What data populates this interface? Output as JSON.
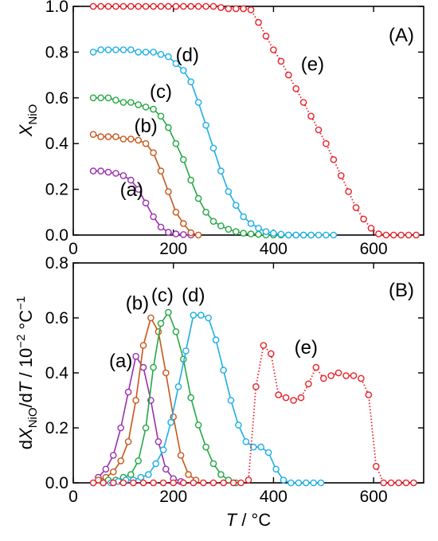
{
  "chart_data": [
    {
      "type": "line",
      "panel_label": "(A)",
      "ylabel": "XNiO",
      "ylabel_parts": {
        "symbol": "X",
        "subscript": "NiO"
      },
      "xlim": [
        0,
        700
      ],
      "ylim": [
        0.0,
        1.0
      ],
      "xticks": [
        0,
        200,
        400,
        600
      ],
      "xtick_labels": [
        "0",
        "200",
        "400",
        "600"
      ],
      "yticks": [
        0.0,
        0.2,
        0.4,
        0.6,
        0.8,
        1.0
      ],
      "ytick_labels": [
        "0.0",
        "0.2",
        "0.4",
        "0.6",
        "0.8",
        "1.0"
      ],
      "grid": false,
      "legend": "none",
      "series": [
        {
          "name": "(a)",
          "color": "#9b2fae",
          "line": "solid",
          "x": [
            40,
            55,
            70,
            85,
            100,
            115,
            130,
            145,
            160,
            175,
            190,
            205,
            220,
            235
          ],
          "y": [
            0.28,
            0.28,
            0.275,
            0.27,
            0.26,
            0.24,
            0.2,
            0.14,
            0.08,
            0.035,
            0.012,
            0.005,
            0.002,
            0.0
          ]
        },
        {
          "name": "(b)",
          "color": "#c8561a",
          "line": "solid",
          "x": [
            40,
            55,
            70,
            85,
            100,
            115,
            130,
            145,
            160,
            175,
            190,
            205,
            220,
            235,
            250
          ],
          "y": [
            0.44,
            0.43,
            0.43,
            0.43,
            0.42,
            0.42,
            0.415,
            0.4,
            0.36,
            0.28,
            0.19,
            0.1,
            0.05,
            0.01,
            0.0
          ]
        },
        {
          "name": "(c)",
          "color": "#24a845",
          "line": "solid",
          "x": [
            40,
            55,
            70,
            85,
            100,
            115,
            130,
            145,
            160,
            175,
            190,
            205,
            220,
            235,
            250,
            265,
            280,
            295,
            310,
            325,
            340,
            355,
            370,
            385,
            400,
            415,
            430,
            445,
            460,
            475
          ],
          "y": [
            0.6,
            0.6,
            0.6,
            0.59,
            0.58,
            0.58,
            0.57,
            0.56,
            0.55,
            0.52,
            0.47,
            0.4,
            0.33,
            0.24,
            0.16,
            0.1,
            0.06,
            0.04,
            0.025,
            0.015,
            0.008,
            0.005,
            0.003,
            0.0,
            0.0,
            0.0,
            0.0,
            0.0,
            0.0,
            0.0
          ]
        },
        {
          "name": "(d)",
          "color": "#1eaee6",
          "line": "solid",
          "x": [
            40,
            55,
            70,
            85,
            100,
            115,
            130,
            145,
            160,
            175,
            190,
            205,
            220,
            235,
            250,
            265,
            280,
            295,
            310,
            325,
            340,
            355,
            370,
            385,
            400,
            415,
            430,
            445,
            460,
            475,
            490,
            505,
            520
          ],
          "y": [
            0.8,
            0.81,
            0.81,
            0.81,
            0.81,
            0.81,
            0.8,
            0.8,
            0.8,
            0.79,
            0.78,
            0.75,
            0.72,
            0.67,
            0.58,
            0.48,
            0.38,
            0.28,
            0.19,
            0.13,
            0.08,
            0.05,
            0.03,
            0.015,
            0.008,
            0.004,
            0.0,
            0.0,
            0.0,
            0.0,
            0.0,
            0.0,
            0.0
          ]
        },
        {
          "name": "(e)",
          "color": "#e8202a",
          "line": "dotted",
          "x": [
            40,
            55,
            70,
            85,
            100,
            115,
            130,
            145,
            160,
            175,
            190,
            205,
            220,
            235,
            250,
            265,
            280,
            295,
            310,
            325,
            340,
            355,
            370,
            385,
            400,
            415,
            430,
            445,
            460,
            475,
            490,
            505,
            520,
            535,
            550,
            565,
            580,
            595,
            610,
            625,
            640,
            655,
            670,
            685
          ],
          "y": [
            1.0,
            1.0,
            1.0,
            1.0,
            1.0,
            1.0,
            1.0,
            1.0,
            1.0,
            1.0,
            1.0,
            1.0,
            1.0,
            1.0,
            1.0,
            1.0,
            1.0,
            0.995,
            0.99,
            0.99,
            0.99,
            0.985,
            0.93,
            0.87,
            0.81,
            0.76,
            0.7,
            0.64,
            0.58,
            0.52,
            0.46,
            0.4,
            0.33,
            0.26,
            0.19,
            0.12,
            0.07,
            0.03,
            0.005,
            0.0,
            0.0,
            0.0,
            0.0,
            0.0
          ]
        }
      ],
      "annotations": [
        {
          "text": "(a)",
          "x": 140,
          "y": 0.17,
          "anchor": "end"
        },
        {
          "text": "(b)",
          "x": 145,
          "y": 0.45,
          "anchor": "middle"
        },
        {
          "text": "(c)",
          "x": 175,
          "y": 0.6,
          "anchor": "middle"
        },
        {
          "text": "(d)",
          "x": 228,
          "y": 0.76,
          "anchor": "middle"
        },
        {
          "text": "(e)",
          "x": 478,
          "y": 0.72,
          "anchor": "middle"
        }
      ]
    },
    {
      "type": "line",
      "panel_label": "(B)",
      "ylabel": "dXNiO/dT / 10−2 °C−1",
      "ylabel_parts": {
        "d1": "d",
        "symbol": "X",
        "subscript": "NiO",
        "slash": "/d",
        "t": "T",
        "unit": " / 10",
        "exp1": "−2",
        "degc": " °C",
        "exp2": "−1"
      },
      "xlabel": "T / °C",
      "xlabel_parts": {
        "symbol": "T",
        "unit": " / °C"
      },
      "xlim": [
        0,
        700
      ],
      "ylim": [
        0.0,
        0.8
      ],
      "xticks": [
        0,
        200,
        400,
        600
      ],
      "xtick_labels": [
        "0",
        "200",
        "400",
        "600"
      ],
      "yticks": [
        0.0,
        0.2,
        0.4,
        0.6,
        0.8
      ],
      "ytick_labels": [
        "0.0",
        "0.2",
        "0.4",
        "0.6",
        "0.8"
      ],
      "grid": false,
      "legend": "none",
      "series": [
        {
          "name": "(a)",
          "color": "#9b2fae",
          "line": "solid",
          "x": [
            50,
            65,
            80,
            95,
            110,
            125,
            140,
            155,
            170,
            185,
            200,
            215
          ],
          "y": [
            0.02,
            0.05,
            0.1,
            0.2,
            0.33,
            0.46,
            0.42,
            0.3,
            0.15,
            0.05,
            0.015,
            0.005
          ]
        },
        {
          "name": "(b)",
          "color": "#c8561a",
          "line": "solid",
          "x": [
            50,
            65,
            80,
            95,
            110,
            125,
            140,
            155,
            170,
            185,
            200,
            215,
            230,
            245
          ],
          "y": [
            0.01,
            0.02,
            0.04,
            0.08,
            0.15,
            0.3,
            0.5,
            0.6,
            0.55,
            0.4,
            0.24,
            0.1,
            0.03,
            0.01
          ]
        },
        {
          "name": "(c)",
          "color": "#24a845",
          "line": "solid",
          "x": [
            70,
            85,
            100,
            115,
            130,
            145,
            160,
            175,
            190,
            205,
            220,
            235,
            250,
            265,
            280,
            295,
            310,
            325
          ],
          "y": [
            0.01,
            0.01,
            0.02,
            0.03,
            0.08,
            0.2,
            0.42,
            0.58,
            0.62,
            0.55,
            0.45,
            0.31,
            0.21,
            0.13,
            0.07,
            0.03,
            0.01,
            0.0
          ]
        },
        {
          "name": "(d)",
          "color": "#1eaee6",
          "line": "solid",
          "x": [
            60,
            75,
            90,
            105,
            120,
            135,
            150,
            165,
            180,
            195,
            210,
            225,
            240,
            255,
            270,
            285,
            300,
            315,
            330,
            345,
            360,
            375,
            390,
            405,
            420,
            435,
            450,
            465,
            480,
            495
          ],
          "y": [
            0.0,
            0.0,
            0.005,
            0.01,
            0.01,
            0.02,
            0.03,
            0.07,
            0.12,
            0.22,
            0.35,
            0.48,
            0.61,
            0.61,
            0.6,
            0.52,
            0.41,
            0.3,
            0.21,
            0.15,
            0.13,
            0.13,
            0.11,
            0.05,
            0.01,
            0.0,
            0.0,
            0.0,
            0.0,
            0.0
          ]
        },
        {
          "name": "(e)",
          "color": "#e8202a",
          "line": "dotted",
          "x": [
            40,
            60,
            80,
            100,
            120,
            140,
            160,
            180,
            200,
            220,
            240,
            260,
            280,
            300,
            320,
            335,
            350,
            365,
            380,
            395,
            410,
            425,
            440,
            455,
            470,
            485,
            500,
            515,
            530,
            545,
            560,
            575,
            590,
            605,
            620,
            635,
            650,
            665,
            680
          ],
          "y": [
            0.0,
            0.0,
            0.0,
            0.0,
            0.0,
            0.0,
            0.0,
            0.0,
            0.0,
            0.0,
            0.0,
            0.0,
            0.0,
            0.0,
            0.0,
            0.0,
            0.01,
            0.35,
            0.5,
            0.47,
            0.32,
            0.31,
            0.3,
            0.31,
            0.36,
            0.42,
            0.38,
            0.39,
            0.4,
            0.39,
            0.39,
            0.38,
            0.32,
            0.06,
            0.0,
            0.0,
            0.0,
            0.0,
            0.0
          ]
        }
      ],
      "annotations": [
        {
          "text": "(a)",
          "x": 95,
          "y": 0.42,
          "anchor": "middle"
        },
        {
          "text": "(b)",
          "x": 128,
          "y": 0.63,
          "anchor": "middle"
        },
        {
          "text": "(c)",
          "x": 178,
          "y": 0.66,
          "anchor": "middle"
        },
        {
          "text": "(d)",
          "x": 240,
          "y": 0.66,
          "anchor": "middle"
        },
        {
          "text": "(e)",
          "x": 465,
          "y": 0.47,
          "anchor": "middle"
        }
      ]
    }
  ]
}
